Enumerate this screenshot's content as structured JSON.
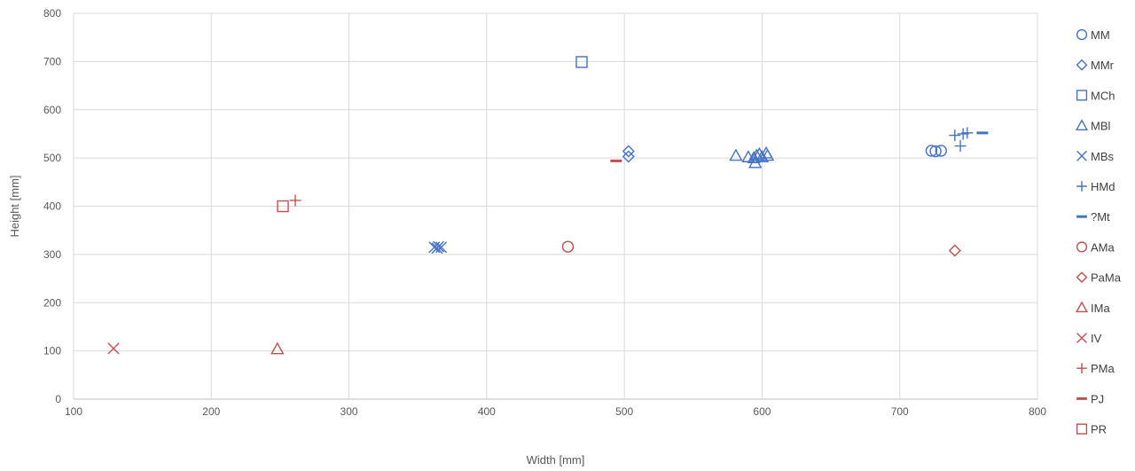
{
  "chart_data": {
    "type": "scatter",
    "title": "",
    "xlabel": "Width [mm]",
    "ylabel": "Height [mm]",
    "xlim": [
      100,
      800
    ],
    "ylim": [
      0,
      800
    ],
    "xticks": [
      "100",
      "200",
      "300",
      "400",
      "500",
      "600",
      "700",
      "800"
    ],
    "yticks": [
      "0",
      "100",
      "200",
      "300",
      "400",
      "500",
      "600",
      "700",
      "800"
    ],
    "grid": true,
    "legend_position": "right",
    "series": [
      {
        "name": "MM",
        "marker": "circle",
        "color": "#4472C4",
        "points": [
          [
            723,
            515
          ],
          [
            726,
            514
          ],
          [
            730,
            515
          ]
        ]
      },
      {
        "name": "MMr",
        "marker": "diamond",
        "color": "#4472C4",
        "points": [
          [
            503,
            514
          ],
          [
            503,
            503
          ]
        ]
      },
      {
        "name": "MCh",
        "marker": "square",
        "color": "#4472C4",
        "points": [
          [
            469,
            699
          ]
        ]
      },
      {
        "name": "MBl",
        "marker": "triangle",
        "color": "#4472C4",
        "points": [
          [
            581,
            505
          ],
          [
            590,
            502
          ],
          [
            594,
            500
          ],
          [
            595,
            490
          ],
          [
            596,
            505
          ],
          [
            598,
            508
          ],
          [
            600,
            502
          ],
          [
            603,
            510
          ],
          [
            604,
            505
          ]
        ]
      },
      {
        "name": "MBs",
        "marker": "x",
        "color": "#4472C4",
        "points": [
          [
            362,
            315
          ],
          [
            365,
            316
          ],
          [
            367,
            315
          ],
          [
            364,
            313
          ]
        ]
      },
      {
        "name": "HMd",
        "marker": "plus",
        "color": "#4472C4",
        "points": [
          [
            740,
            547
          ],
          [
            746,
            550
          ],
          [
            749,
            552
          ],
          [
            744,
            525
          ]
        ]
      },
      {
        "name": "?Mt",
        "marker": "dash",
        "color": "#4472C4",
        "points": [
          [
            760,
            552
          ]
        ]
      },
      {
        "name": "AMa",
        "marker": "circle",
        "color": "#C0504D",
        "points": [
          [
            459,
            316
          ]
        ]
      },
      {
        "name": "PaMa",
        "marker": "diamond",
        "color": "#C0504D",
        "points": [
          [
            740,
            308
          ]
        ]
      },
      {
        "name": "IMa",
        "marker": "triangle",
        "color": "#C0504D",
        "points": [
          [
            248,
            104
          ]
        ]
      },
      {
        "name": "IV",
        "marker": "x",
        "color": "#C0504D",
        "points": [
          [
            129,
            105
          ]
        ]
      },
      {
        "name": "PMa",
        "marker": "plus",
        "color": "#C0504D",
        "points": [
          [
            261,
            412
          ]
        ]
      },
      {
        "name": "PJ",
        "marker": "dash",
        "color": "#C0504D",
        "points": [
          [
            494,
            494
          ]
        ]
      },
      {
        "name": "PR",
        "marker": "square",
        "color": "#C0504D",
        "points": [
          [
            252,
            400
          ]
        ]
      }
    ]
  }
}
